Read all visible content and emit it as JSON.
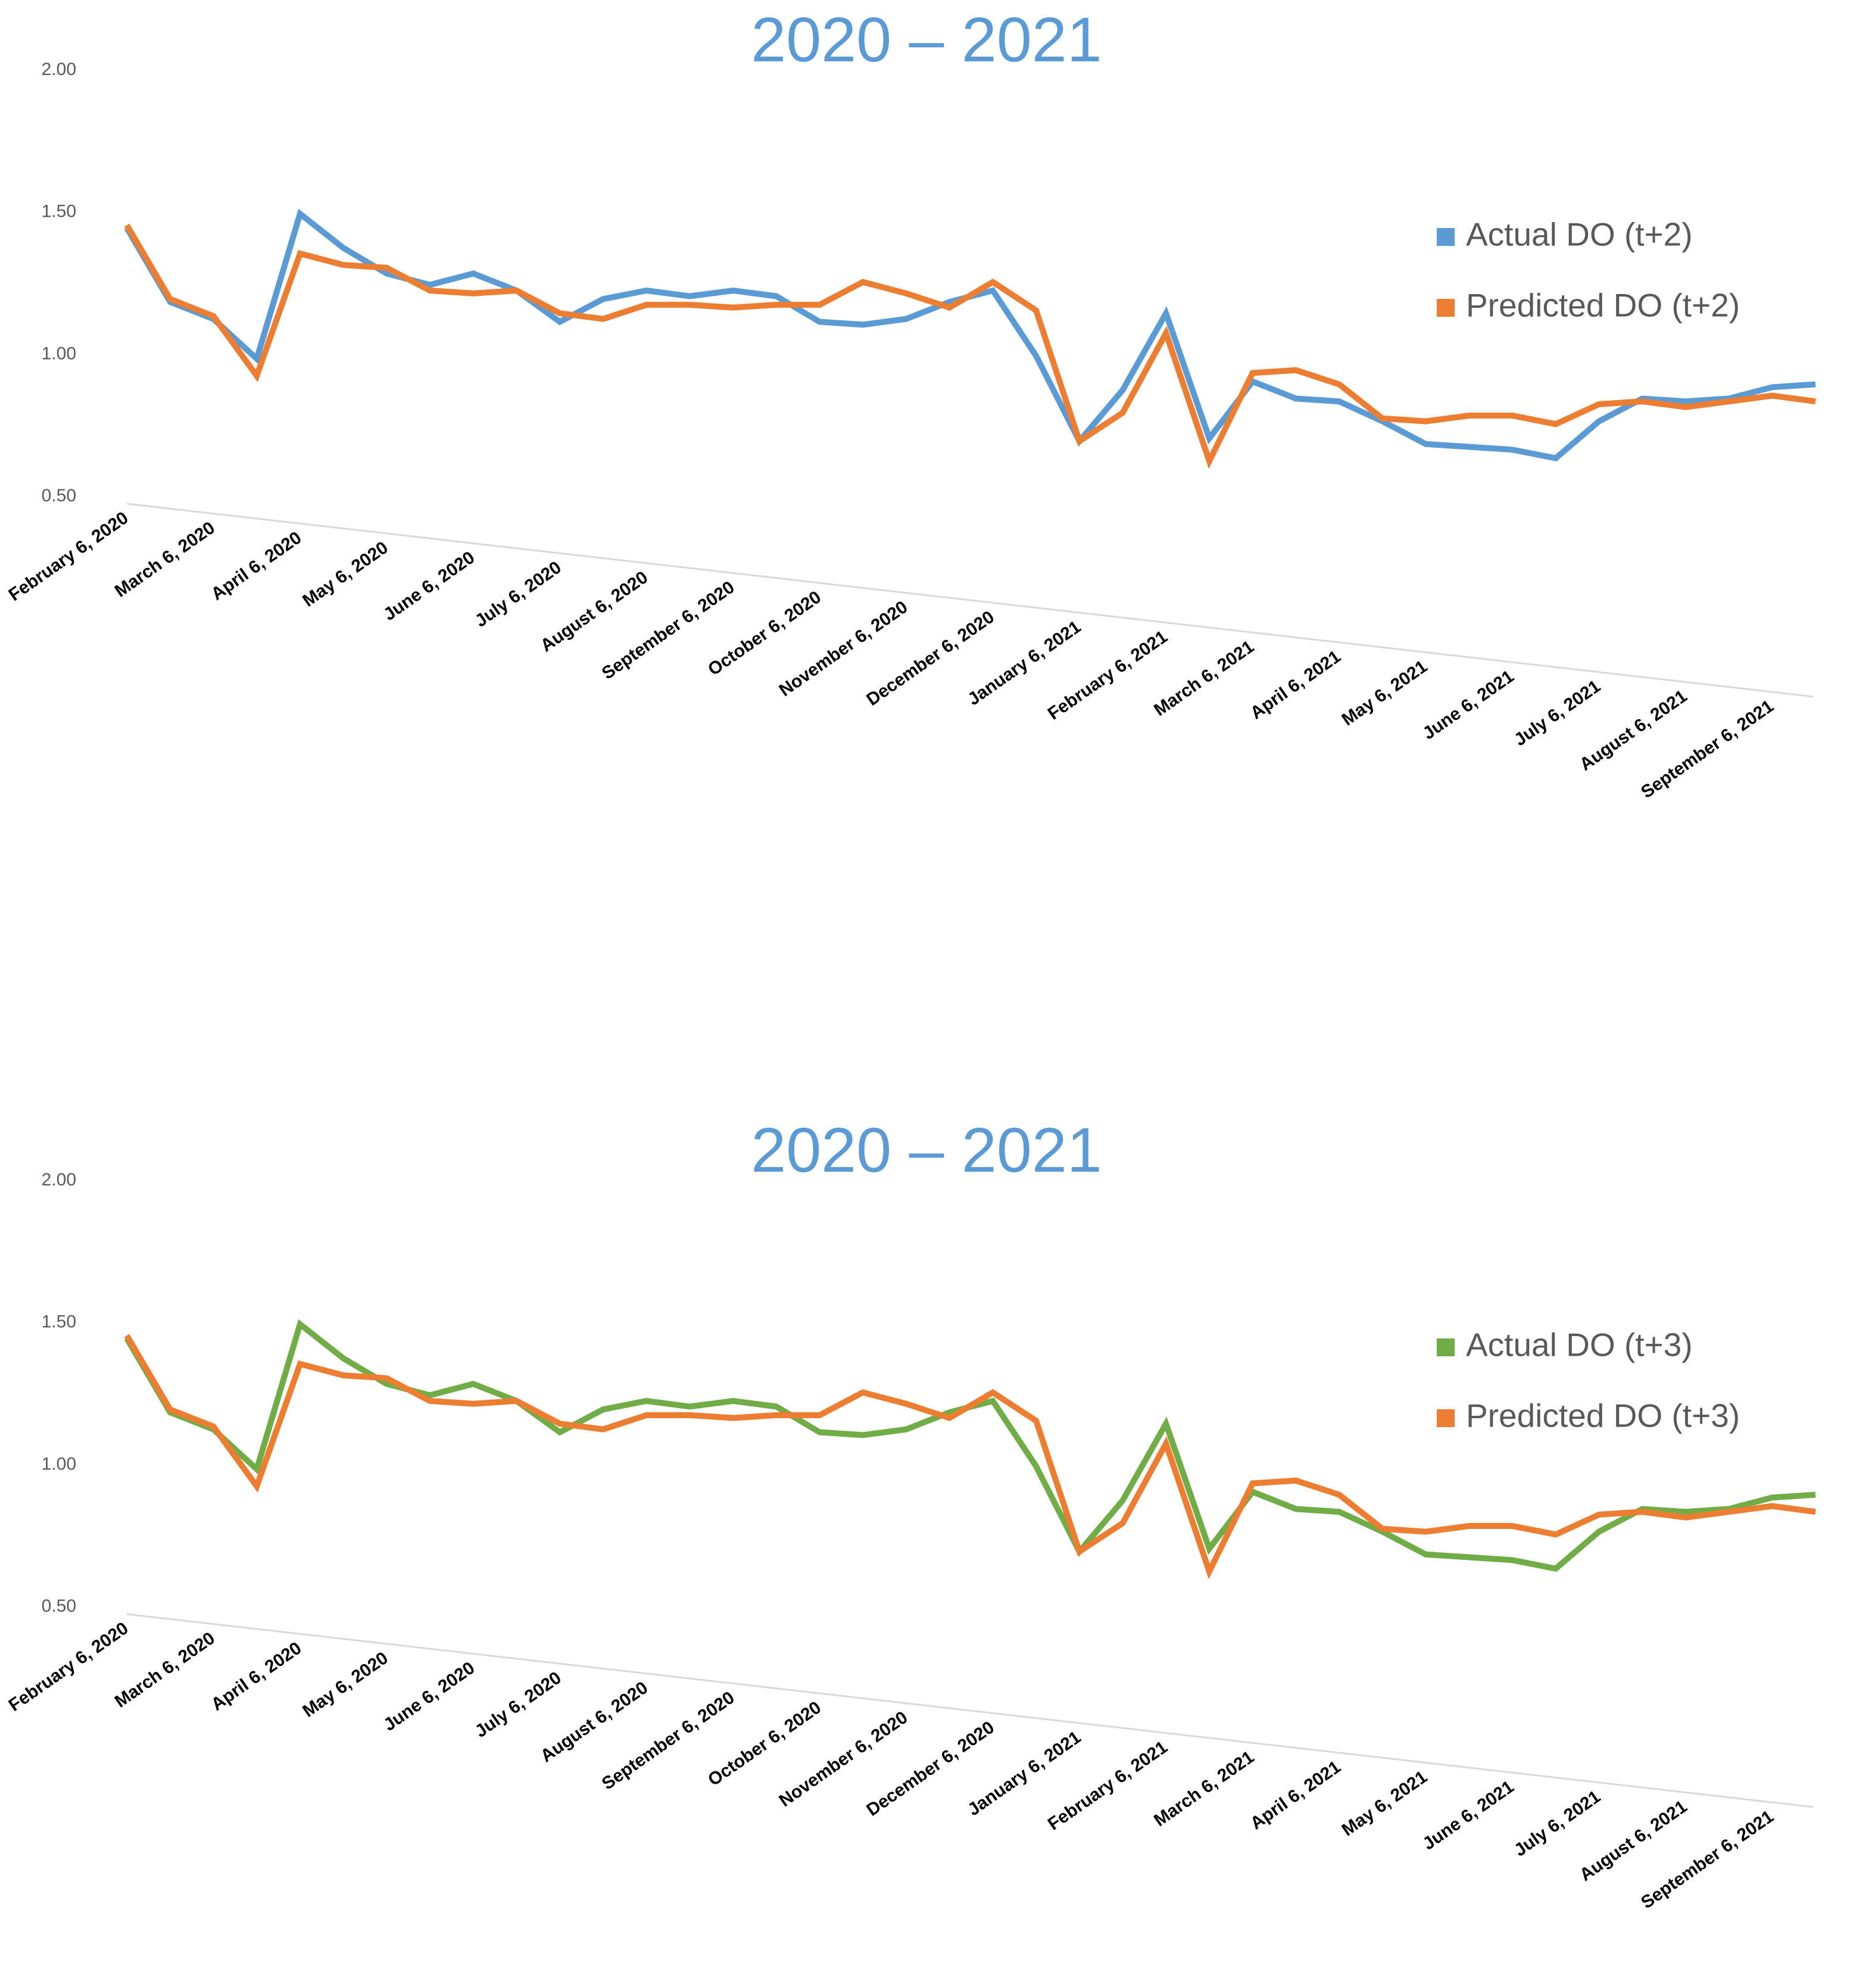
{
  "chart_data": [
    {
      "type": "line",
      "title": "2020 – 2021",
      "categories": [
        "February 6, 2020",
        null,
        "March 6, 2020",
        null,
        "April 6, 2020",
        null,
        "May 6, 2020",
        null,
        "June 6, 2020",
        null,
        "July 6, 2020",
        null,
        "August 6, 2020",
        null,
        "September 6, 2020",
        null,
        "October 6, 2020",
        null,
        "November 6, 2020",
        null,
        "December 6, 2020",
        null,
        "January 6, 2021",
        null,
        "February 6, 2021",
        null,
        "March 6, 2021",
        null,
        "April 6, 2021",
        null,
        "May 6, 2021",
        null,
        "June 6, 2021",
        null,
        "July 6, 2021",
        null,
        "August 6, 2021",
        null,
        "September 6, 2021",
        null
      ],
      "series": [
        {
          "name": "Actual DO (t+2)",
          "color": "#5b9bd5",
          "values": [
            1.47,
            1.21,
            1.15,
            1.01,
            1.52,
            1.4,
            1.31,
            1.27,
            1.31,
            1.25,
            1.14,
            1.22,
            1.25,
            1.23,
            1.25,
            1.23,
            1.14,
            1.13,
            1.15,
            1.21,
            1.25,
            1.02,
            0.72,
            0.9,
            1.17,
            0.73,
            0.93,
            0.87,
            0.86,
            0.79,
            0.71,
            0.7,
            0.69,
            0.66,
            0.79,
            0.87,
            0.86,
            0.87,
            0.91,
            0.92
          ]
        },
        {
          "name": "Predicted DO (t+2)",
          "color": "#ed7d31",
          "values": [
            1.48,
            1.22,
            1.16,
            0.95,
            1.38,
            1.34,
            1.33,
            1.25,
            1.24,
            1.25,
            1.17,
            1.15,
            1.2,
            1.2,
            1.19,
            1.2,
            1.2,
            1.28,
            1.24,
            1.19,
            1.28,
            1.18,
            0.72,
            0.82,
            1.1,
            0.65,
            0.96,
            0.97,
            0.92,
            0.8,
            0.79,
            0.81,
            0.81,
            0.78,
            0.85,
            0.86,
            0.84,
            0.86,
            0.88,
            0.86
          ]
        }
      ],
      "ylim": [
        0.5,
        2.0
      ],
      "yticks": [
        {
          "value": 0.5,
          "label": "0.50"
        },
        {
          "value": 1,
          "label": "1.00"
        },
        {
          "value": 1.5,
          "label": "1.50"
        },
        {
          "value": 2,
          "label": "2.00"
        }
      ],
      "legend": "right"
    },
    {
      "type": "line",
      "title": "2020 – 2021",
      "categories": [
        "February 6, 2020",
        null,
        "March 6, 2020",
        null,
        "April 6, 2020",
        null,
        "May 6, 2020",
        null,
        "June 6, 2020",
        null,
        "July 6, 2020",
        null,
        "August 6, 2020",
        null,
        "September 6, 2020",
        null,
        "October 6, 2020",
        null,
        "November 6, 2020",
        null,
        "December 6, 2020",
        null,
        "January 6, 2021",
        null,
        "February 6, 2021",
        null,
        "March 6, 2021",
        null,
        "April 6, 2021",
        null,
        "May 6, 2021",
        null,
        "June 6, 2021",
        null,
        "July 6, 2021",
        null,
        "August 6, 2021",
        null,
        "September 6, 2021",
        null
      ],
      "series": [
        {
          "name": "Actual DO (t+3)",
          "color": "#70ad47",
          "values": [
            1.47,
            1.21,
            1.15,
            1.01,
            1.52,
            1.4,
            1.31,
            1.27,
            1.31,
            1.25,
            1.14,
            1.22,
            1.25,
            1.23,
            1.25,
            1.23,
            1.14,
            1.13,
            1.15,
            1.21,
            1.25,
            1.02,
            0.72,
            0.9,
            1.17,
            0.73,
            0.93,
            0.87,
            0.86,
            0.79,
            0.71,
            0.7,
            0.69,
            0.66,
            0.79,
            0.87,
            0.86,
            0.87,
            0.91,
            0.92
          ]
        },
        {
          "name": "Predicted DO (t+3)",
          "color": "#ed7d31",
          "values": [
            1.48,
            1.22,
            1.16,
            0.95,
            1.38,
            1.34,
            1.33,
            1.25,
            1.24,
            1.25,
            1.17,
            1.15,
            1.2,
            1.2,
            1.19,
            1.2,
            1.2,
            1.28,
            1.24,
            1.19,
            1.28,
            1.18,
            0.72,
            0.82,
            1.1,
            0.65,
            0.96,
            0.97,
            0.92,
            0.8,
            0.79,
            0.81,
            0.81,
            0.78,
            0.85,
            0.86,
            0.84,
            0.86,
            0.88,
            0.86
          ]
        }
      ],
      "ylim": [
        0.5,
        2.0
      ],
      "yticks": [
        {
          "value": 0.5,
          "label": "0.50"
        },
        {
          "value": 1,
          "label": "1.00"
        },
        {
          "value": 1.5,
          "label": "1.50"
        },
        {
          "value": 2,
          "label": "2.00"
        }
      ],
      "legend": "right"
    }
  ]
}
